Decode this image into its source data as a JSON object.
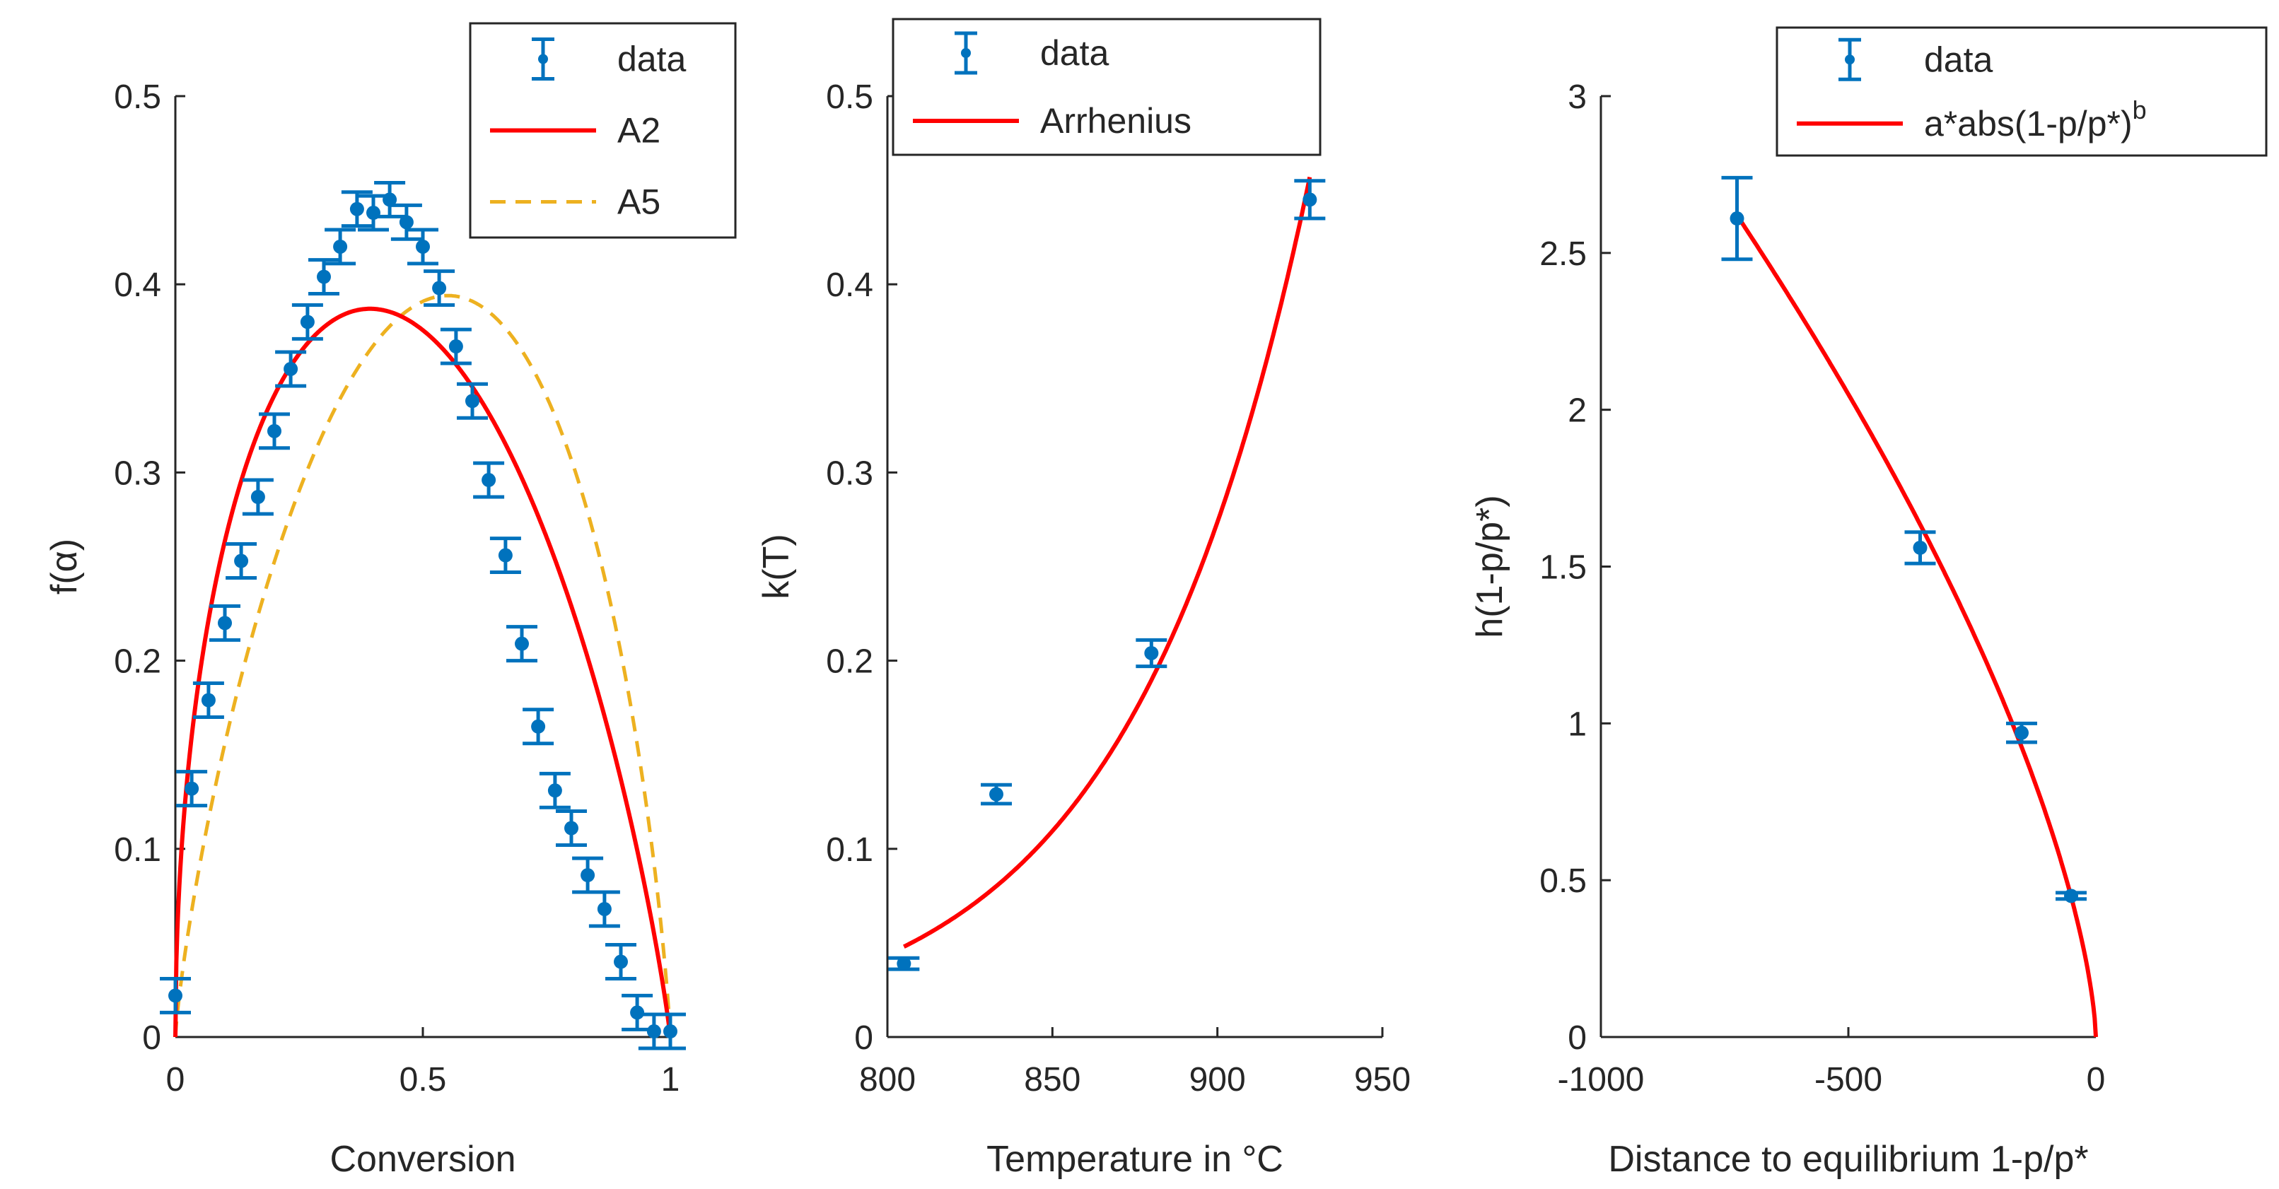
{
  "colors": {
    "data": "#0072BD",
    "fit_red": "#FF0000",
    "fit_orange": "#EDB120",
    "axis": "#262626"
  },
  "chart_data": [
    {
      "type": "scatter",
      "xlabel": "Conversion",
      "ylabel": "f(α)",
      "xlim": [
        0,
        1
      ],
      "ylim": [
        0,
        0.5
      ],
      "xticks": [
        "0",
        "0.5",
        "1"
      ],
      "yticks": [
        "0",
        "0.1",
        "0.2",
        "0.3",
        "0.4",
        "0.5"
      ],
      "legend_position": "top-right",
      "series": [
        {
          "name": "data",
          "kind": "errorbar",
          "x": [
            0.0,
            0.033,
            0.067,
            0.1,
            0.133,
            0.167,
            0.2,
            0.233,
            0.267,
            0.3,
            0.333,
            0.367,
            0.4,
            0.433,
            0.467,
            0.5,
            0.533,
            0.567,
            0.6,
            0.633,
            0.667,
            0.7,
            0.733,
            0.767,
            0.8,
            0.833,
            0.867,
            0.9,
            0.933,
            0.967,
            1.0
          ],
          "y": [
            0.022,
            0.132,
            0.179,
            0.22,
            0.253,
            0.287,
            0.322,
            0.355,
            0.38,
            0.404,
            0.42,
            0.44,
            0.438,
            0.445,
            0.433,
            0.42,
            0.398,
            0.367,
            0.338,
            0.296,
            0.256,
            0.209,
            0.165,
            0.131,
            0.111,
            0.086,
            0.068,
            0.04,
            0.013,
            0.003,
            0.003
          ],
          "err": [
            0.009,
            0.009,
            0.009,
            0.009,
            0.009,
            0.009,
            0.009,
            0.009,
            0.009,
            0.009,
            0.009,
            0.009,
            0.009,
            0.009,
            0.009,
            0.009,
            0.009,
            0.009,
            0.009,
            0.009,
            0.009,
            0.009,
            0.009,
            0.009,
            0.009,
            0.009,
            0.009,
            0.009,
            0.009,
            0.009,
            0.009
          ]
        },
        {
          "name": "A2",
          "kind": "line",
          "style": "solid",
          "model": "avrami",
          "n": 2,
          "peak": 0.387
        },
        {
          "name": "A5",
          "kind": "line",
          "style": "dashed",
          "model": "avrami",
          "n": 5,
          "peak": 0.394
        }
      ]
    },
    {
      "type": "scatter",
      "xlabel": "Temperature in °C",
      "ylabel": "k(T)",
      "xlim": [
        800,
        950
      ],
      "ylim": [
        0,
        0.5
      ],
      "xticks": [
        "800",
        "850",
        "900",
        "950"
      ],
      "yticks": [
        "0",
        "0.1",
        "0.2",
        "0.3",
        "0.4",
        "0.5"
      ],
      "legend_position": "top-left",
      "series": [
        {
          "name": "data",
          "kind": "errorbar",
          "x": [
            805,
            833,
            880,
            928
          ],
          "y": [
            0.039,
            0.129,
            0.204,
            0.445
          ],
          "err": [
            0.003,
            0.005,
            0.007,
            0.01
          ]
        },
        {
          "name": "Arrhenius",
          "kind": "line",
          "style": "solid",
          "model": "exponential",
          "x_range": [
            805,
            928
          ],
          "y_at_start": 0.048,
          "y_at_end": 0.457
        }
      ]
    },
    {
      "type": "scatter",
      "xlabel": "Distance to equilibrium 1-p/p*",
      "ylabel": "h(1-p/p*)",
      "xlim": [
        -1000,
        0
      ],
      "ylim": [
        0,
        3
      ],
      "xticks": [
        "-1000",
        "-500",
        "0"
      ],
      "yticks": [
        "0",
        "0.5",
        "1",
        "1.5",
        "2",
        "2.5",
        "3"
      ],
      "legend_position": "top-right",
      "series": [
        {
          "name": "data",
          "kind": "errorbar",
          "x": [
            -725,
            -355,
            -150,
            -50
          ],
          "y": [
            2.61,
            1.56,
            0.97,
            0.45
          ],
          "err": [
            0.13,
            0.05,
            0.03,
            0.01
          ]
        },
        {
          "name": "a*abs(1-p/p*)",
          "name_superscript": "b",
          "kind": "line",
          "style": "solid",
          "model": "power",
          "a": 0.0337,
          "b": 0.661,
          "x_range": [
            -725,
            0
          ]
        }
      ]
    }
  ]
}
